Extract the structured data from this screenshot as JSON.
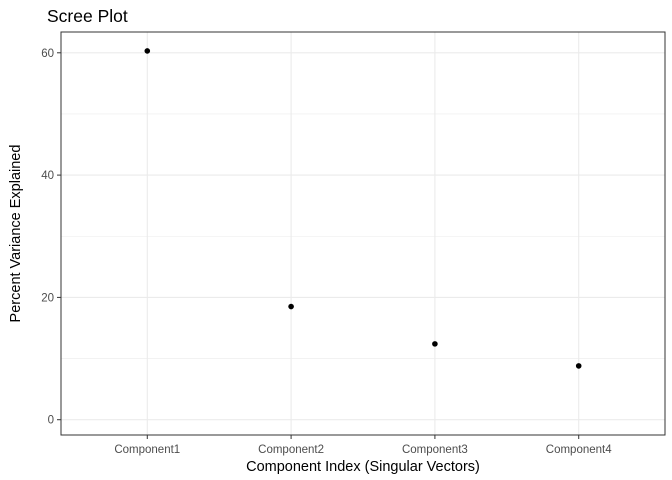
{
  "chart_data": {
    "type": "scatter",
    "title": "Scree Plot",
    "xlabel": "Component Index (Singular Vectors)",
    "ylabel": "Percent Variance Explained",
    "categories": [
      "Component1",
      "Component2",
      "Component3",
      "Component4"
    ],
    "values": [
      60.3,
      18.5,
      12.4,
      8.8
    ],
    "ylim": [
      -2.5,
      63.4
    ],
    "yticks": [
      "0",
      "20",
      "40",
      "60"
    ],
    "grid": true,
    "legend": "none",
    "point_color": "#000000"
  }
}
